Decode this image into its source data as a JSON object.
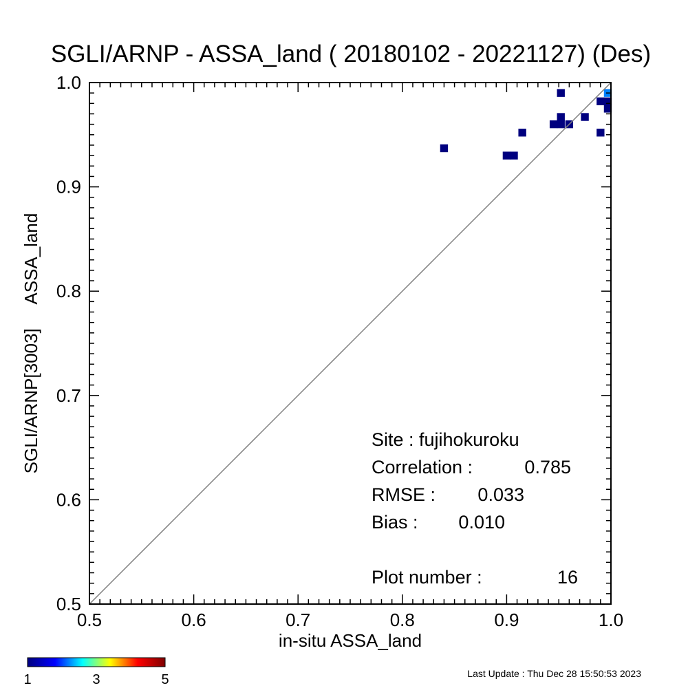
{
  "colors": {
    "count_1": "#00007f",
    "count_2": "#0080ff",
    "identity_line": "#808080"
  },
  "chart_data": {
    "type": "heatmap",
    "title": "SGLI/ARNP - ASSA_land ( 20180102 - 20221127) (Des)",
    "xlabel": "in-situ ASSA_land",
    "ylabel": "SGLI/ARNP[3003]     ASSA_land",
    "xlim": [
      0.5,
      1.0
    ],
    "ylim": [
      0.5,
      1.0
    ],
    "x_ticks": [
      "0.5",
      "0.6",
      "0.7",
      "0.8",
      "0.9",
      "1.0"
    ],
    "y_ticks": [
      "0.5",
      "0.6",
      "0.7",
      "0.8",
      "0.9",
      "1.0"
    ],
    "identity_line": true,
    "cell_size": 0.0075,
    "cells": [
      {
        "x": 0.84,
        "y": 0.937,
        "count": 1
      },
      {
        "x": 0.9,
        "y": 0.93,
        "count": 1
      },
      {
        "x": 0.907,
        "y": 0.93,
        "count": 1
      },
      {
        "x": 0.915,
        "y": 0.952,
        "count": 1
      },
      {
        "x": 0.945,
        "y": 0.96,
        "count": 1
      },
      {
        "x": 0.952,
        "y": 0.96,
        "count": 1
      },
      {
        "x": 0.952,
        "y": 0.967,
        "count": 1
      },
      {
        "x": 0.96,
        "y": 0.96,
        "count": 1
      },
      {
        "x": 0.952,
        "y": 0.99,
        "count": 1
      },
      {
        "x": 0.975,
        "y": 0.967,
        "count": 1
      },
      {
        "x": 0.99,
        "y": 0.952,
        "count": 1
      },
      {
        "x": 0.99,
        "y": 0.982,
        "count": 1
      },
      {
        "x": 0.997,
        "y": 0.982,
        "count": 1
      },
      {
        "x": 0.997,
        "y": 0.975,
        "count": 1
      },
      {
        "x": 0.997,
        "y": 0.99,
        "count": 2
      }
    ],
    "colorbar": {
      "min": 1,
      "max": 5,
      "tick_labels": [
        "1",
        "3",
        "5"
      ],
      "stops": [
        "#00007f",
        "#0000ff",
        "#00ffff",
        "#ffff00",
        "#ff0000",
        "#7f0000"
      ]
    },
    "stats": {
      "site_label": "Site : fujihokuroku",
      "correlation_label": "Correlation :",
      "correlation_value": "0.785",
      "rmse_label": "RMSE :",
      "rmse_value": "0.033",
      "bias_label": "Bias :",
      "bias_value": "0.010",
      "plot_number_label": "Plot number :",
      "plot_number_value": "16"
    }
  },
  "footer": {
    "last_update": "Last Update : Thu Dec 28 15:50:53 2023"
  }
}
